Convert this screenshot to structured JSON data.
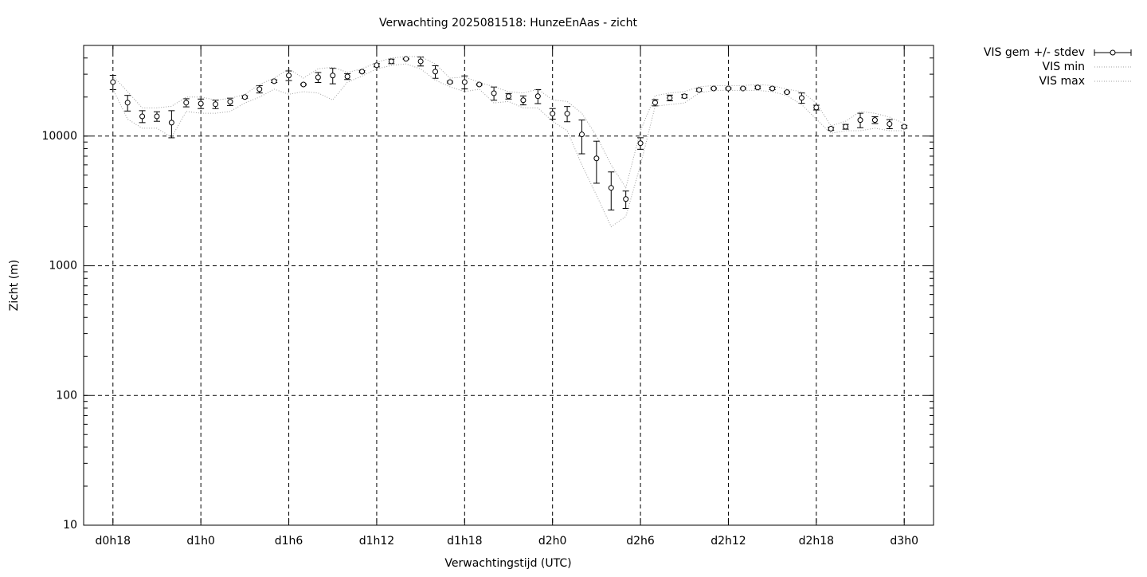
{
  "chart_data": {
    "type": "errorbar-line",
    "title": "Verwachting 2025081518: HunzeEnAas - zicht",
    "xlabel": "Verwachtingstijd (UTC)",
    "ylabel": "Zicht (m)",
    "x": [
      18,
      19,
      20,
      21,
      22,
      23,
      24,
      25,
      26,
      27,
      28,
      29,
      30,
      31,
      32,
      33,
      34,
      35,
      36,
      37,
      38,
      39,
      40,
      41,
      42,
      43,
      44,
      45,
      46,
      47,
      48,
      49,
      50,
      51,
      52,
      53,
      54,
      55,
      56,
      57,
      58,
      59,
      60,
      61,
      62,
      63,
      64,
      65,
      66,
      67,
      68,
      69,
      70,
      71,
      72
    ],
    "xlim": [
      16,
      74
    ],
    "xticks": [
      {
        "value": 18,
        "label": "d0h18"
      },
      {
        "value": 24,
        "label": "d1h0"
      },
      {
        "value": 30,
        "label": "d1h6"
      },
      {
        "value": 36,
        "label": "d1h12"
      },
      {
        "value": 42,
        "label": "d1h18"
      },
      {
        "value": 48,
        "label": "d2h0"
      },
      {
        "value": 54,
        "label": "d2h6"
      },
      {
        "value": 60,
        "label": "d2h12"
      },
      {
        "value": 66,
        "label": "d2h18"
      },
      {
        "value": 72,
        "label": "d3h0"
      }
    ],
    "ylim": [
      10,
      50000
    ],
    "yticks": [
      10,
      100,
      1000,
      10000
    ],
    "log_y": true,
    "grid": true,
    "legend": "outside-top-right",
    "series": [
      {
        "name": "VIS gem +/- stdev",
        "color": "#000000",
        "values": [
          26100,
          18100,
          14200,
          14200,
          12700,
          18100,
          17800,
          17600,
          18400,
          20000,
          23000,
          26500,
          29300,
          25000,
          28400,
          29300,
          28800,
          31400,
          35200,
          37700,
          39400,
          37700,
          31400,
          26100,
          26100,
          25000,
          21400,
          20300,
          18900,
          20300,
          14900,
          14900,
          10300,
          6730,
          3990,
          3270,
          8810,
          18100,
          19700,
          20300,
          22700,
          23300,
          23300,
          23300,
          23700,
          23300,
          21800,
          19700,
          16600,
          11400,
          11800,
          13300,
          13300,
          12400,
          11800
        ],
        "errors": [
          3300,
          2500,
          1500,
          1200,
          3000,
          1300,
          1500,
          1300,
          1200,
          400,
          1500,
          600,
          2500,
          300,
          2500,
          4000,
          1500,
          500,
          1000,
          1500,
          300,
          3000,
          3500,
          400,
          3000,
          300,
          2500,
          1000,
          1500,
          2500,
          1400,
          2000,
          3000,
          2400,
          1300,
          500,
          900,
          1000,
          1000,
          600,
          500,
          300,
          300,
          300,
          600,
          500,
          300,
          1800,
          700,
          300,
          500,
          1700,
          800,
          1000,
          300
        ]
      },
      {
        "name": "VIS min",
        "color": "#a0a0a0",
        "values": [
          23000,
          13500,
          11500,
          11500,
          9800,
          15500,
          15000,
          15000,
          15500,
          18000,
          20000,
          23000,
          21000,
          22000,
          21500,
          19000,
          26000,
          29000,
          33000,
          35000,
          36000,
          33000,
          27000,
          24000,
          22000,
          23000,
          18000,
          18500,
          16500,
          16500,
          13000,
          11000,
          6000,
          3500,
          2000,
          2400,
          6000,
          17000,
          17500,
          18000,
          21500,
          22500,
          22500,
          22500,
          22500,
          22000,
          20500,
          17500,
          13500,
          10500,
          11000,
          11000,
          11500,
          11000,
          11000
        ]
      },
      {
        "name": "VIS max",
        "color": "#a0a0a0",
        "values": [
          29000,
          22000,
          16500,
          16500,
          17000,
          20000,
          20000,
          19000,
          19500,
          21000,
          25000,
          28000,
          33000,
          28000,
          33000,
          34000,
          31000,
          33000,
          37000,
          40000,
          41000,
          41000,
          36000,
          28000,
          28500,
          26000,
          24000,
          22000,
          21500,
          23000,
          19000,
          18500,
          15000,
          10000,
          6000,
          4000,
          11000,
          20500,
          21500,
          22000,
          24000,
          24500,
          24500,
          24500,
          25000,
          24500,
          23000,
          22000,
          18000,
          12000,
          13000,
          15500,
          15000,
          14000,
          12500
        ]
      }
    ]
  }
}
